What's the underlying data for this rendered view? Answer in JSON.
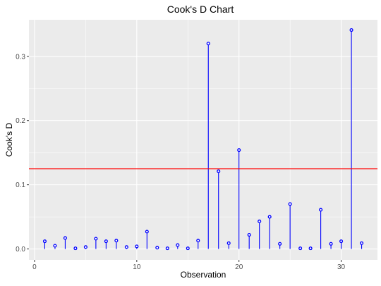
{
  "chart_data": {
    "type": "scatter",
    "title": "Cook's D Chart",
    "xlabel": "Observation",
    "ylabel": "Cook's D",
    "xlim": [
      -0.55,
      33.55
    ],
    "ylim": [
      -0.017,
      0.357
    ],
    "x_ticks": [
      0,
      10,
      20,
      30
    ],
    "x_tick_labels": [
      "0",
      "10",
      "20",
      "30"
    ],
    "y_ticks": [
      0.0,
      0.1,
      0.2,
      0.3
    ],
    "y_tick_labels": [
      "0.0",
      "0.1",
      "0.2",
      "0.3"
    ],
    "x_minor_ticks": [
      5,
      15,
      25
    ],
    "y_minor_ticks": [
      0.05,
      0.15,
      0.25
    ],
    "grid": true,
    "x": [
      1,
      2,
      3,
      4,
      5,
      6,
      7,
      8,
      9,
      10,
      11,
      12,
      13,
      14,
      15,
      16,
      17,
      18,
      19,
      20,
      21,
      22,
      23,
      24,
      25,
      26,
      27,
      28,
      29,
      30,
      31,
      32
    ],
    "values": [
      0.012,
      0.005,
      0.017,
      0.001,
      0.003,
      0.016,
      0.012,
      0.013,
      0.003,
      0.004,
      0.027,
      0.002,
      0.001,
      0.006,
      0.001,
      0.013,
      0.32,
      0.121,
      0.009,
      0.154,
      0.022,
      0.043,
      0.05,
      0.008,
      0.07,
      0.001,
      0.001,
      0.061,
      0.008,
      0.012,
      0.341,
      0.009
    ],
    "threshold": 0.125,
    "colors": {
      "panel_background": "#ebebeb",
      "grid": "#ffffff",
      "stems": "#0000ff",
      "points": "#0000ff",
      "threshold_line": "#ff0000"
    }
  }
}
